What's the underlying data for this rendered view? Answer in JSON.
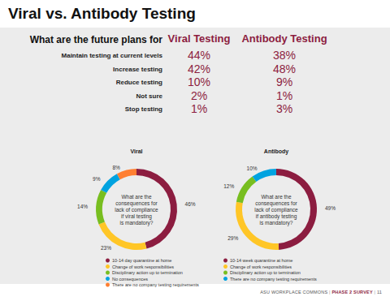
{
  "title": "Viral vs. Antibody Testing",
  "table": {
    "header": "What are the future plans for",
    "columns": [
      "Viral Testing",
      "Antibody Testing"
    ],
    "rows": [
      {
        "label": "Maintain testing at current levels",
        "values": [
          "44%",
          "38%"
        ]
      },
      {
        "label": "Increase testing",
        "values": [
          "42%",
          "48%"
        ]
      },
      {
        "label": "Reduce testing",
        "values": [
          "10%",
          "9%"
        ]
      },
      {
        "label": "Not sure",
        "values": [
          "2%",
          "1%"
        ]
      },
      {
        "label": "Stop testing",
        "values": [
          "1%",
          "3%"
        ]
      }
    ]
  },
  "chart_data": [
    {
      "type": "donut",
      "title": "Viral",
      "center_text": [
        "What are the",
        "consequences for",
        "lack of compliance",
        "if viral testing",
        "is mandatory?"
      ],
      "categories": [
        "10-14 day quarantine at home",
        "Change of work responsibilities",
        "Disciplinary action up to termination",
        "No consequences",
        "There are no company testing requirements"
      ],
      "values": [
        46,
        23,
        14,
        9,
        8
      ],
      "value_labels": [
        "46%",
        "23%",
        "14%",
        "9%",
        "8%"
      ],
      "colors": [
        "#8c1d40",
        "#ffc627",
        "#78be20",
        "#00a3e0",
        "#ff7f32"
      ],
      "data_labels": true,
      "legend": "bottom"
    },
    {
      "type": "donut",
      "title": "Antibody",
      "center_text": [
        "What are the",
        "consequences for",
        "lack of compliance",
        "if antibody testing",
        "is mandatory?"
      ],
      "categories": [
        "10-14 week quarantine at home",
        "Change of work responsibilities",
        "Disciplinary action up to termination",
        "There are no company testing requirements"
      ],
      "values": [
        49,
        29,
        12,
        10
      ],
      "value_labels": [
        "49%",
        "29%",
        "12%",
        "10%"
      ],
      "colors": [
        "#8c1d40",
        "#ffc627",
        "#78be20",
        "#00a3e0"
      ],
      "data_labels": true,
      "legend": "bottom"
    }
  ],
  "footer": {
    "parts": [
      "ASU WORKPLACE COMMONS",
      "PHASE 2 SURVEY",
      "11"
    ],
    "separator": "|"
  }
}
